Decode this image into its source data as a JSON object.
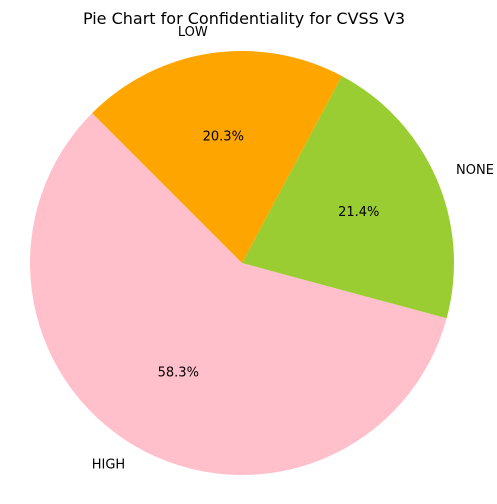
{
  "chart_data": {
    "type": "pie",
    "title": "Pie Chart for Confidentiality for CVSS V3",
    "start_angle_deg": 135,
    "direction": "counterclockwise",
    "slices": [
      {
        "label": "HIGH",
        "value": 58.3,
        "pct_label": "58.3%",
        "color": "#FFC0CB"
      },
      {
        "label": "NONE",
        "value": 21.4,
        "pct_label": "21.4%",
        "color": "#9ACD32"
      },
      {
        "label": "LOW",
        "value": 20.3,
        "pct_label": "20.3%",
        "color": "#FFA500"
      }
    ]
  }
}
